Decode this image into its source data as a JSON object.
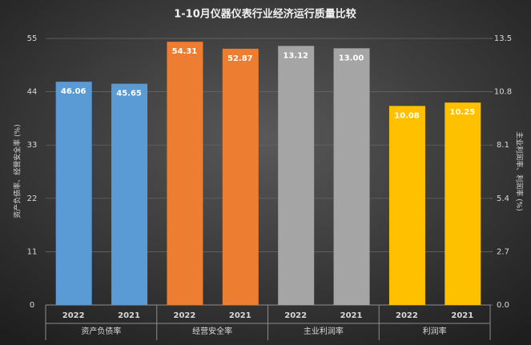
{
  "chart_data": {
    "type": "grouped-bar",
    "title": "1-10月仪器仪表行业经济运行质量比较",
    "ylabel": "资产负债率、经营安全率 (%)",
    "y2label": "主业利润率、利润率 (%)",
    "ylim": [
      0,
      55
    ],
    "yticks": [
      0,
      11,
      22,
      33,
      44,
      55
    ],
    "y2lim": [
      0,
      13.5
    ],
    "y2ticks": [
      {
        "value": 0,
        "label": "0.0"
      },
      2.7,
      5.4,
      8.1,
      10.8,
      13.5
    ],
    "grid": true,
    "groups": [
      {
        "name": "资产负债率",
        "color": "#5b9bd5",
        "axis": "y",
        "categories": [
          "2022",
          "2021"
        ],
        "values": [
          46.06,
          45.65
        ]
      },
      {
        "name": "经营安全率",
        "color": "#ed7d31",
        "axis": "y",
        "categories": [
          "2022",
          "2021"
        ],
        "values": [
          54.31,
          52.87
        ]
      },
      {
        "name": "主业利润率",
        "color": "#a5a5a5",
        "axis": "y2",
        "categories": [
          "2022",
          "2021"
        ],
        "values": [
          13.12,
          13.0
        ],
        "value_labels": [
          "13.12",
          "13.00"
        ]
      },
      {
        "name": "利润率",
        "color": "#ffc000",
        "axis": "y2",
        "categories": [
          "2022",
          "2021"
        ],
        "values": [
          10.08,
          10.25
        ]
      }
    ]
  }
}
